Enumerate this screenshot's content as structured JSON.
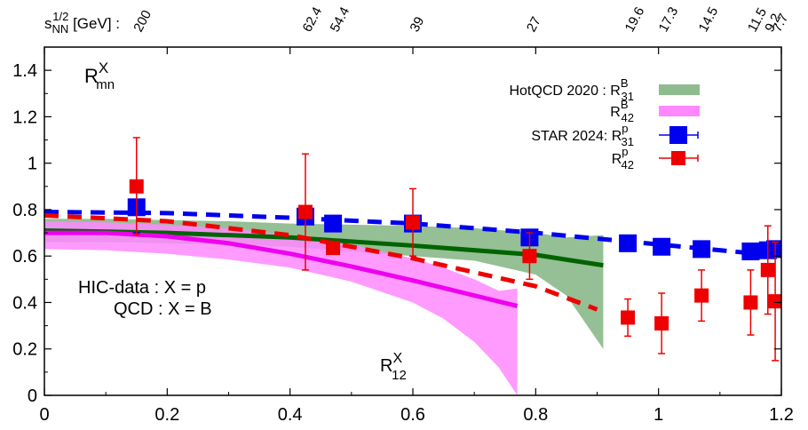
{
  "chart_data": {
    "type": "scatter",
    "title": "",
    "xlabel": "",
    "ylabel": "",
    "xlim": [
      0,
      1.2
    ],
    "ylim": [
      0,
      1.5
    ],
    "x_ticks": [
      "0",
      "0.2",
      "0.4",
      "0.6",
      "0.8",
      "1",
      "1.2"
    ],
    "x_tick_values": [
      0,
      0.2,
      0.4,
      0.6,
      0.8,
      1.0,
      1.2
    ],
    "y_ticks": [
      "0",
      "0.2",
      "0.4",
      "0.6",
      "0.8",
      "1",
      "1.2",
      "1.4"
    ],
    "y_tick_values": [
      0,
      0.2,
      0.4,
      0.6,
      0.8,
      1.0,
      1.2,
      1.4
    ],
    "grid": false,
    "legend_position": "top-right",
    "top_axis": {
      "label_main": "s",
      "label_sup": "1/2",
      "label_sub": "NN",
      "label_unit": " [GeV] :",
      "ticks": [
        {
          "label": "200",
          "x": 0.15
        },
        {
          "label": "62.4",
          "x": 0.425
        },
        {
          "label": "54.4",
          "x": 0.47
        },
        {
          "label": "39",
          "x": 0.6
        },
        {
          "label": "27",
          "x": 0.79
        },
        {
          "label": "19.6",
          "x": 0.95
        },
        {
          "label": "17.3",
          "x": 1.005
        },
        {
          "label": "14.5",
          "x": 1.07
        },
        {
          "label": "11.5",
          "x": 1.15
        },
        {
          "label": "9.2",
          "x": 1.178
        },
        {
          "label": "7.7",
          "x": 1.19
        }
      ]
    },
    "annotations": {
      "panel_label_main": "R",
      "panel_label_sup": "X",
      "panel_label_sub": "mn",
      "line1": "HIC-data : X = p",
      "line2": "QCD : X = B",
      "bottom_label_main": "R",
      "bottom_label_sup": "X",
      "bottom_label_sub": "12"
    },
    "legend": [
      {
        "prefix": "HotQCD 2020 : ",
        "main": "R",
        "sup": "B",
        "sub": "31",
        "color": "#8fbc8f",
        "kind": "band"
      },
      {
        "prefix": "",
        "main": "R",
        "sup": "B",
        "sub": "42",
        "color": "#ff88ff",
        "kind": "band"
      },
      {
        "prefix": "STAR 2024: ",
        "main": "R",
        "sup": "p",
        "sub": "31",
        "color": "#0000ee",
        "kind": "point"
      },
      {
        "prefix": "",
        "main": "R",
        "sup": "p",
        "sub": "42",
        "color": "#ee0000",
        "kind": "point"
      }
    ],
    "series": [
      {
        "name": "HotQCD 2020 : R31B band",
        "kind": "band",
        "color": "#8fbc8f",
        "x": [
          0,
          0.1,
          0.2,
          0.3,
          0.4,
          0.5,
          0.6,
          0.7,
          0.8,
          0.85,
          0.91,
          0.91
        ],
        "upper": [
          0.76,
          0.76,
          0.755,
          0.75,
          0.74,
          0.735,
          0.73,
          0.72,
          0.7,
          0.68,
          0.69,
          0.69
        ],
        "lower": [
          0.66,
          0.66,
          0.655,
          0.65,
          0.64,
          0.62,
          0.6,
          0.58,
          0.52,
          0.43,
          0.2,
          0.2
        ]
      },
      {
        "name": "HotQCD 2020 : R31B central",
        "kind": "line",
        "color": "#006400",
        "x": [
          0,
          0.2,
          0.4,
          0.6,
          0.8,
          0.91
        ],
        "y": [
          0.71,
          0.7,
          0.68,
          0.645,
          0.605,
          0.56
        ]
      },
      {
        "name": "R42B band",
        "kind": "band",
        "color": "#ff88ff",
        "x": [
          0,
          0.1,
          0.2,
          0.3,
          0.4,
          0.5,
          0.6,
          0.65,
          0.7,
          0.74,
          0.77,
          0.77
        ],
        "upper": [
          0.75,
          0.745,
          0.735,
          0.72,
          0.69,
          0.65,
          0.59,
          0.55,
          0.5,
          0.45,
          0.46,
          0.46
        ],
        "lower": [
          0.63,
          0.625,
          0.61,
          0.585,
          0.55,
          0.49,
          0.4,
          0.33,
          0.23,
          0.12,
          0.0,
          0.0
        ]
      },
      {
        "name": "R42B central",
        "kind": "line",
        "color": "#ee00ee",
        "x": [
          0,
          0.1,
          0.2,
          0.3,
          0.4,
          0.5,
          0.6,
          0.7,
          0.77
        ],
        "y": [
          0.7,
          0.7,
          0.685,
          0.655,
          0.61,
          0.555,
          0.495,
          0.43,
          0.385
        ]
      },
      {
        "name": "R31p trend",
        "kind": "dashed",
        "color": "#0000ee",
        "x": [
          0,
          0.2,
          0.4,
          0.6,
          0.8,
          1.0,
          1.2
        ],
        "y": [
          0.79,
          0.785,
          0.765,
          0.74,
          0.7,
          0.65,
          0.6
        ]
      },
      {
        "name": "R42p trend",
        "kind": "dashed",
        "color": "#ee0000",
        "x": [
          0,
          0.2,
          0.4,
          0.6,
          0.8,
          0.9
        ],
        "y": [
          0.775,
          0.75,
          0.69,
          0.59,
          0.47,
          0.37
        ]
      },
      {
        "name": "STAR 2024: R31p",
        "kind": "points",
        "color": "#0000ee",
        "points": [
          {
            "x": 0.15,
            "y": 0.81,
            "err": 0.11
          },
          {
            "x": 0.425,
            "y": 0.77,
            "err": 0.02
          },
          {
            "x": 0.47,
            "y": 0.74,
            "err": 0.01
          },
          {
            "x": 0.6,
            "y": 0.74,
            "err": 0.01
          },
          {
            "x": 0.79,
            "y": 0.68,
            "err": 0.01
          },
          {
            "x": 0.95,
            "y": 0.655,
            "err": 0.01
          },
          {
            "x": 1.005,
            "y": 0.64,
            "err": 0.01
          },
          {
            "x": 1.07,
            "y": 0.63,
            "err": 0.01
          },
          {
            "x": 1.15,
            "y": 0.62,
            "err": 0.01
          },
          {
            "x": 1.178,
            "y": 0.625,
            "err": 0.01
          },
          {
            "x": 1.19,
            "y": 0.63,
            "err": 0.01
          }
        ]
      },
      {
        "name": "STAR 2024: R42p",
        "kind": "points",
        "color": "#ee0000",
        "points": [
          {
            "x": 0.15,
            "y": 0.9,
            "err": 0.21
          },
          {
            "x": 0.425,
            "y": 0.79,
            "err": 0.25
          },
          {
            "x": 0.47,
            "y": 0.635,
            "err": 0.02
          },
          {
            "x": 0.6,
            "y": 0.745,
            "err": 0.145
          },
          {
            "x": 0.79,
            "y": 0.6,
            "err": 0.1
          },
          {
            "x": 0.95,
            "y": 0.335,
            "err": 0.08
          },
          {
            "x": 1.005,
            "y": 0.31,
            "err": 0.13
          },
          {
            "x": 1.07,
            "y": 0.43,
            "err": 0.11
          },
          {
            "x": 1.15,
            "y": 0.4,
            "err": 0.14
          },
          {
            "x": 1.178,
            "y": 0.54,
            "err": 0.19
          },
          {
            "x": 1.19,
            "y": 0.405,
            "err": 0.255
          }
        ]
      }
    ]
  }
}
